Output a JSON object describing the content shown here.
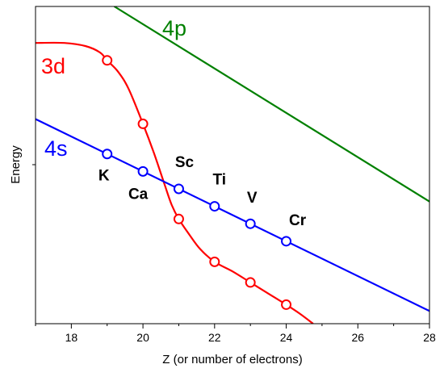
{
  "chart_data": {
    "type": "line",
    "title": "",
    "xlabel": "Z (or number of electrons)",
    "ylabel": "Energy",
    "xlim": [
      17,
      28
    ],
    "ylim": [
      0,
      10
    ],
    "x_ticks": [
      18,
      20,
      22,
      24,
      26,
      28
    ],
    "y_tick_labels": false,
    "grid": false,
    "legend": "none (series labeled inline on the plot)",
    "series": [
      {
        "name": "4p",
        "color": "#008000",
        "curve": [
          [
            19.2,
            10.0
          ],
          [
            28,
            3.85
          ]
        ],
        "markers": []
      },
      {
        "name": "3d",
        "color": "#ff0000",
        "curve": [
          [
            17,
            8.85
          ],
          [
            17.8,
            8.85
          ],
          [
            18.4,
            8.75
          ],
          [
            18.8,
            8.55
          ],
          [
            19.0,
            8.3
          ],
          [
            19.3,
            7.95
          ],
          [
            19.6,
            7.4
          ],
          [
            20.0,
            6.3
          ],
          [
            20.3,
            5.4
          ],
          [
            20.6,
            4.4
          ],
          [
            20.8,
            3.75
          ],
          [
            21.0,
            3.3
          ],
          [
            21.3,
            2.8
          ],
          [
            21.6,
            2.35
          ],
          [
            22.0,
            1.95
          ],
          [
            22.5,
            1.65
          ],
          [
            23.0,
            1.3
          ],
          [
            23.5,
            0.95
          ],
          [
            24.0,
            0.6
          ],
          [
            24.4,
            0.3
          ],
          [
            24.75,
            0.0
          ]
        ],
        "markers": [
          [
            19,
            8.3
          ],
          [
            20,
            6.3
          ],
          [
            21,
            3.3
          ],
          [
            22,
            1.95
          ],
          [
            23,
            1.3
          ],
          [
            24,
            0.6
          ]
        ]
      },
      {
        "name": "4s",
        "color": "#0000ff",
        "curve": [
          [
            17,
            6.45
          ],
          [
            28,
            0.4
          ]
        ],
        "markers": [
          [
            19,
            5.35
          ],
          [
            20,
            4.8
          ],
          [
            21,
            4.25
          ],
          [
            22,
            3.7
          ],
          [
            23,
            3.15
          ],
          [
            24,
            2.6
          ]
        ]
      }
    ],
    "point_labels": [
      {
        "text": "K",
        "x": 19,
        "y": 5.35
      },
      {
        "text": "Ca",
        "x": 20,
        "y": 4.8
      },
      {
        "text": "Sc",
        "x": 21,
        "y": 4.25
      },
      {
        "text": "Ti",
        "x": 22,
        "y": 3.7
      },
      {
        "text": "V",
        "x": 23,
        "y": 3.15
      },
      {
        "text": "Cr",
        "x": 24,
        "y": 2.6
      }
    ]
  }
}
